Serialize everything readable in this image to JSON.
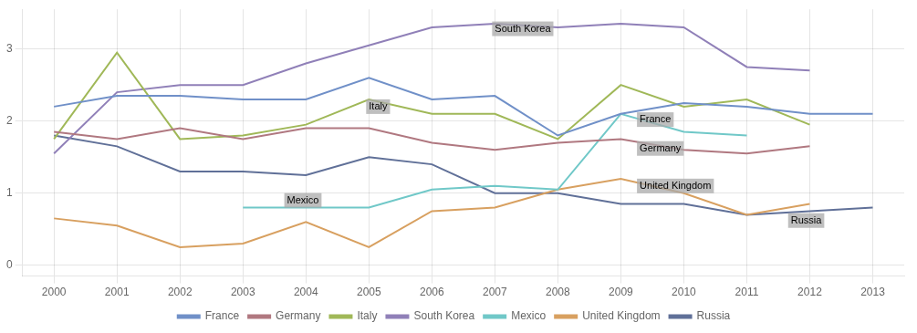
{
  "chart_data": {
    "type": "line",
    "x": [
      2000,
      2001,
      2002,
      2003,
      2004,
      2005,
      2006,
      2007,
      2008,
      2009,
      2010,
      2011,
      2012,
      2013
    ],
    "series": [
      {
        "name": "France",
        "color": "#7090c8",
        "values": [
          2.2,
          2.35,
          2.35,
          2.3,
          2.3,
          2.6,
          2.3,
          2.35,
          1.8,
          2.1,
          2.25,
          2.2,
          2.1,
          2.1
        ]
      },
      {
        "name": "Germany",
        "color": "#b07880",
        "values": [
          1.85,
          1.75,
          1.9,
          1.75,
          1.9,
          1.9,
          1.7,
          1.6,
          1.7,
          1.75,
          1.6,
          1.55,
          1.65,
          null
        ]
      },
      {
        "name": "Italy",
        "color": "#a0b858",
        "values": [
          1.75,
          2.95,
          1.75,
          1.8,
          1.95,
          2.3,
          2.1,
          2.1,
          1.75,
          2.5,
          2.2,
          2.3,
          1.95,
          null
        ]
      },
      {
        "name": "South Korea",
        "color": "#9080b8",
        "values": [
          1.55,
          2.4,
          2.5,
          2.5,
          2.8,
          3.05,
          3.3,
          3.35,
          3.3,
          3.35,
          3.3,
          2.75,
          2.7,
          null
        ]
      },
      {
        "name": "Mexico",
        "color": "#70c8c8",
        "values": [
          null,
          null,
          null,
          0.8,
          0.8,
          0.8,
          1.05,
          1.1,
          1.05,
          2.1,
          1.85,
          1.8,
          null,
          null
        ]
      },
      {
        "name": "United Kingdom",
        "color": "#d8a060",
        "values": [
          0.65,
          0.55,
          0.25,
          0.3,
          0.6,
          0.25,
          0.75,
          0.8,
          1.05,
          1.2,
          1.0,
          0.7,
          0.85,
          null
        ]
      },
      {
        "name": "Russia",
        "color": "#607098",
        "values": [
          1.8,
          1.65,
          1.3,
          1.3,
          1.25,
          1.5,
          1.4,
          1.0,
          1.0,
          0.85,
          0.85,
          0.7,
          0.75,
          0.8
        ]
      }
    ],
    "annotations": [
      {
        "text": "South Korea",
        "x": 2007,
        "y": 3.28
      },
      {
        "text": "Italy",
        "x": 2005,
        "y": 2.2
      },
      {
        "text": "France",
        "x": 2009.3,
        "y": 2.02
      },
      {
        "text": "Germany",
        "x": 2009.3,
        "y": 1.62
      },
      {
        "text": "United Kingdom",
        "x": 2009.3,
        "y": 1.1
      },
      {
        "text": "Mexico",
        "x": 2003.7,
        "y": 0.9
      },
      {
        "text": "Russia",
        "x": 2011.7,
        "y": 0.62
      }
    ],
    "xlim": [
      1999.5,
      2013.5
    ],
    "xticks": [
      2000,
      2001,
      2002,
      2003,
      2004,
      2005,
      2006,
      2007,
      2008,
      2009,
      2010,
      2011,
      2012,
      2013
    ],
    "ylim": [
      -0.15,
      3.55
    ],
    "yticks": [
      0,
      1,
      2,
      3
    ],
    "grid": true,
    "legend": "bottom"
  }
}
